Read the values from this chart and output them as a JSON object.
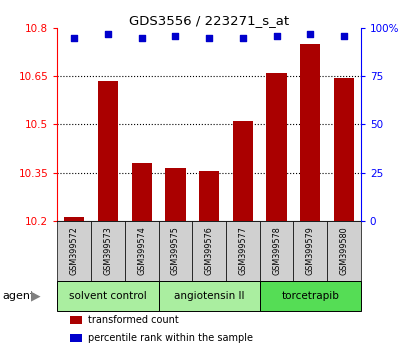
{
  "title": "GDS3556 / 223271_s_at",
  "samples": [
    "GSM399572",
    "GSM399573",
    "GSM399574",
    "GSM399575",
    "GSM399576",
    "GSM399577",
    "GSM399578",
    "GSM399579",
    "GSM399580"
  ],
  "transformed_counts": [
    10.21,
    10.635,
    10.38,
    10.365,
    10.355,
    10.51,
    10.66,
    10.75,
    10.645
  ],
  "percentile_ranks": [
    95,
    97,
    95,
    96,
    95,
    95,
    96,
    97,
    96
  ],
  "ylim_left": [
    10.2,
    10.8
  ],
  "yticks_left": [
    10.2,
    10.35,
    10.5,
    10.65,
    10.8
  ],
  "yticks_right": [
    0,
    25,
    50,
    75,
    100
  ],
  "ylim_right": [
    0,
    100
  ],
  "bar_color": "#aa0000",
  "dot_color": "#0000cc",
  "groups": [
    {
      "label": "solvent control",
      "start": 0,
      "end": 3,
      "color": "#aaeea0"
    },
    {
      "label": "angiotensin II",
      "start": 3,
      "end": 6,
      "color": "#aaeea0"
    },
    {
      "label": "torcetrapib",
      "start": 6,
      "end": 9,
      "color": "#55dd55"
    }
  ],
  "agent_label": "agent",
  "legend_items": [
    {
      "label": "transformed count",
      "color": "#aa0000"
    },
    {
      "label": "percentile rank within the sample",
      "color": "#0000cc"
    }
  ],
  "sample_bg": "#d0d0d0",
  "plot_bg": "#ffffff",
  "bar_width": 0.6
}
